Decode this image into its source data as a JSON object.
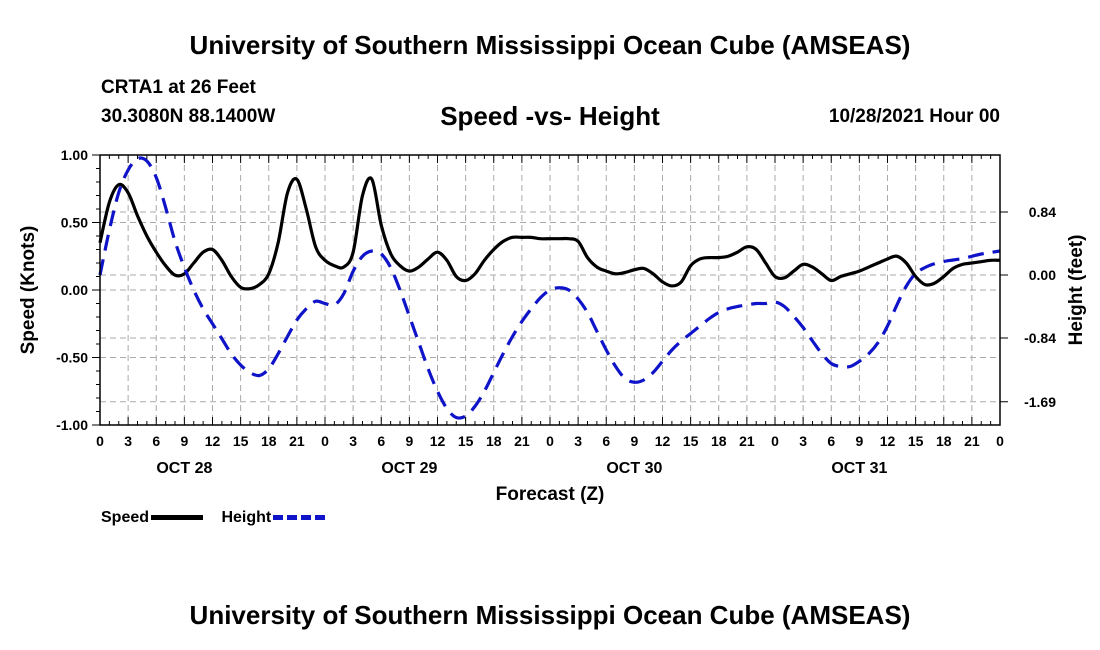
{
  "header": {
    "main_title": "University of Southern Mississippi Ocean Cube (AMSEAS)",
    "station_name": "CRTA1 at 26 Feet",
    "station_coords": "30.3080N  88.1400W",
    "chart_title": "Speed -vs- Height",
    "date_label": "10/28/2021 Hour 00"
  },
  "footer": {
    "title": "University of Southern Mississippi Ocean Cube (AMSEAS)"
  },
  "legend": {
    "speed_label": "Speed",
    "height_label": "Height"
  },
  "colors": {
    "speed": "#000000",
    "height": "#0f14c8",
    "grid": "#aaaaaa"
  },
  "chart_data": {
    "type": "line",
    "title": "Speed -vs- Height",
    "xlabel": "Forecast (Z)",
    "ylabel": "Speed (Knots)",
    "y2label": "Height (feet)",
    "xlim": [
      0,
      96
    ],
    "ylim": [
      -1.0,
      1.0
    ],
    "y2lim": [
      -2.0,
      1.6
    ],
    "grid": true,
    "legend_position": "bottom-left",
    "x_ticks": [
      0,
      3,
      6,
      9,
      12,
      15,
      18,
      21,
      24,
      27,
      30,
      33,
      36,
      39,
      42,
      45,
      48,
      51,
      54,
      57,
      60,
      63,
      66,
      69,
      72,
      75,
      78,
      81,
      84,
      87,
      90,
      93,
      96
    ],
    "x_tick_labels": [
      "0",
      "3",
      "6",
      "9",
      "12",
      "15",
      "18",
      "21",
      "0",
      "3",
      "6",
      "9",
      "12",
      "15",
      "18",
      "21",
      "0",
      "3",
      "6",
      "9",
      "12",
      "15",
      "18",
      "21",
      "0",
      "3",
      "6",
      "9",
      "12",
      "15",
      "18",
      "21",
      "0"
    ],
    "day_labels": [
      {
        "hour": 9,
        "label": "OCT 28"
      },
      {
        "hour": 33,
        "label": "OCT 29"
      },
      {
        "hour": 57,
        "label": "OCT 30"
      },
      {
        "hour": 81,
        "label": "OCT 31"
      }
    ],
    "y_ticks": [
      -1.0,
      -0.5,
      0.0,
      0.5,
      1.0
    ],
    "y_tick_labels": [
      "-1.00",
      "-0.50",
      "0.00",
      "0.50",
      "1.00"
    ],
    "y2_ticks": [
      0.84,
      0.0,
      -0.84,
      -1.69
    ],
    "y2_tick_labels": [
      "0.84",
      "0.00",
      "-0.84",
      "-1.69"
    ],
    "series": [
      {
        "name": "Speed",
        "axis": "left",
        "style": "solid",
        "x": [
          0,
          1,
          2,
          3,
          4,
          5,
          6,
          7,
          8,
          9,
          10,
          11,
          12,
          13,
          14,
          15,
          16,
          17,
          18,
          19,
          20,
          21,
          22,
          23,
          24,
          25,
          26,
          27,
          28,
          29,
          30,
          31,
          32,
          33,
          34,
          35,
          36,
          37,
          38,
          39,
          40,
          41,
          42,
          43,
          44,
          45,
          46,
          47,
          48,
          49,
          50,
          51,
          52,
          53,
          54,
          55,
          56,
          57,
          58,
          59,
          60,
          61,
          62,
          63,
          64,
          65,
          66,
          67,
          68,
          69,
          70,
          71,
          72,
          73,
          74,
          75,
          76,
          77,
          78,
          79,
          80,
          81,
          82,
          83,
          84,
          85,
          86,
          87,
          88,
          89,
          90,
          91,
          92,
          93,
          94,
          95,
          96
        ],
        "values": [
          0.35,
          0.65,
          0.78,
          0.72,
          0.55,
          0.4,
          0.28,
          0.18,
          0.11,
          0.12,
          0.2,
          0.28,
          0.3,
          0.22,
          0.1,
          0.02,
          0.01,
          0.04,
          0.12,
          0.35,
          0.72,
          0.82,
          0.6,
          0.32,
          0.22,
          0.18,
          0.17,
          0.28,
          0.7,
          0.82,
          0.48,
          0.27,
          0.18,
          0.14,
          0.17,
          0.23,
          0.28,
          0.22,
          0.1,
          0.07,
          0.12,
          0.22,
          0.3,
          0.36,
          0.39,
          0.39,
          0.39,
          0.38,
          0.38,
          0.38,
          0.38,
          0.36,
          0.24,
          0.17,
          0.14,
          0.12,
          0.13,
          0.15,
          0.16,
          0.12,
          0.06,
          0.03,
          0.06,
          0.18,
          0.23,
          0.24,
          0.24,
          0.25,
          0.28,
          0.32,
          0.3,
          0.2,
          0.1,
          0.09,
          0.14,
          0.19,
          0.17,
          0.12,
          0.07,
          0.1,
          0.12,
          0.14,
          0.17,
          0.2,
          0.23,
          0.25,
          0.2,
          0.1,
          0.04,
          0.05,
          0.1,
          0.16,
          0.19,
          0.2,
          0.21,
          0.22,
          0.22
        ]
      },
      {
        "name": "Height",
        "axis": "right",
        "style": "dashed",
        "x": [
          0,
          1,
          2,
          3,
          4,
          5,
          6,
          7,
          8,
          9,
          10,
          11,
          12,
          13,
          14,
          15,
          16,
          17,
          18,
          19,
          20,
          21,
          22,
          23,
          24,
          25,
          26,
          27,
          28,
          29,
          30,
          31,
          32,
          33,
          34,
          35,
          36,
          37,
          38,
          39,
          40,
          41,
          42,
          43,
          44,
          45,
          46,
          47,
          48,
          49,
          50,
          51,
          52,
          53,
          54,
          55,
          56,
          57,
          58,
          59,
          60,
          61,
          62,
          63,
          64,
          65,
          66,
          67,
          68,
          69,
          70,
          71,
          72,
          73,
          74,
          75,
          76,
          77,
          78,
          79,
          80,
          81,
          82,
          83,
          84,
          85,
          86,
          87,
          88,
          89,
          90,
          91,
          92,
          93,
          94,
          95,
          96
        ],
        "values": [
          0.0,
          0.6,
          1.1,
          1.4,
          1.55,
          1.52,
          1.3,
          0.9,
          0.45,
          0.1,
          -0.2,
          -0.45,
          -0.65,
          -0.85,
          -1.05,
          -1.2,
          -1.3,
          -1.34,
          -1.25,
          -1.05,
          -0.82,
          -0.6,
          -0.45,
          -0.35,
          -0.38,
          -0.4,
          -0.25,
          0.05,
          0.25,
          0.32,
          0.28,
          0.1,
          -0.2,
          -0.55,
          -0.9,
          -1.25,
          -1.55,
          -1.78,
          -1.9,
          -1.88,
          -1.75,
          -1.55,
          -1.3,
          -1.05,
          -0.82,
          -0.62,
          -0.45,
          -0.3,
          -0.2,
          -0.17,
          -0.2,
          -0.32,
          -0.5,
          -0.75,
          -1.0,
          -1.22,
          -1.38,
          -1.43,
          -1.4,
          -1.3,
          -1.15,
          -1.0,
          -0.88,
          -0.78,
          -0.68,
          -0.58,
          -0.5,
          -0.45,
          -0.42,
          -0.4,
          -0.38,
          -0.38,
          -0.36,
          -0.42,
          -0.55,
          -0.7,
          -0.88,
          -1.05,
          -1.18,
          -1.22,
          -1.22,
          -1.15,
          -1.05,
          -0.9,
          -0.68,
          -0.4,
          -0.15,
          0.02,
          0.1,
          0.15,
          0.18,
          0.2,
          0.22,
          0.25,
          0.28,
          0.3,
          0.32
        ]
      }
    ]
  }
}
